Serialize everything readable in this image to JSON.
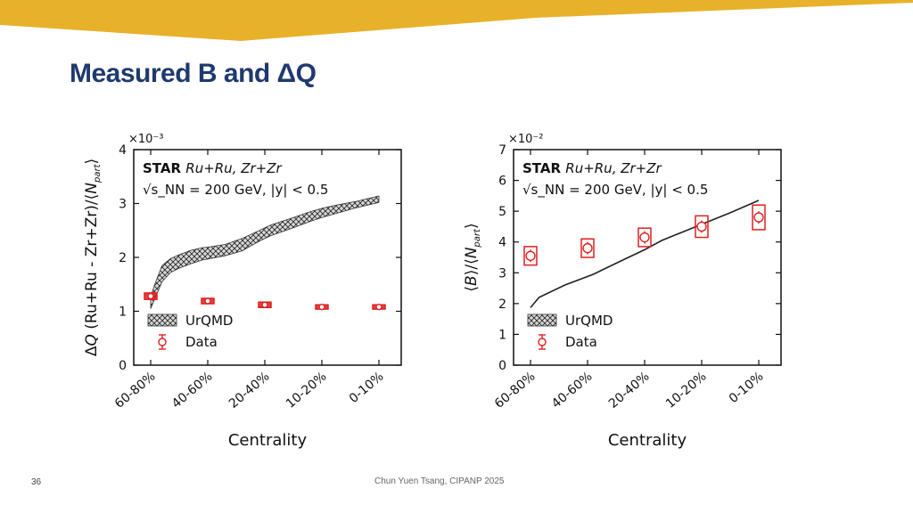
{
  "slide": {
    "title": "Measured B and ΔQ",
    "page_number": "36",
    "credit": "Chun Yuen Tsang, CIPANP 2025",
    "colors": {
      "banner": "#e8b12a",
      "title": "#1f3a6e",
      "data_marker": "#e02020",
      "model_line": "#222222"
    }
  },
  "chart_data": [
    {
      "type": "line",
      "id": "delta-q",
      "multiplier_label": "×10⁻³",
      "ylabel": "ΔQ (Ru+Ru - Zr+Zr)/⟨N_part⟩",
      "xlabel": "Centrality",
      "categories": [
        "60-80%",
        "40-60%",
        "20-40%",
        "10-20%",
        "0-10%"
      ],
      "ylim": [
        0,
        4
      ],
      "yticks": [
        0,
        1,
        2,
        3,
        4
      ],
      "annotation": {
        "experiment": "STAR",
        "system": "Ru+Ru, Zr+Zr",
        "energy": "√s_NN = 200 GeV, |y| < 0.5"
      },
      "legend": [
        "UrQMD",
        "Data"
      ],
      "legend_position": "lower-left",
      "series": [
        {
          "name": "UrQMD",
          "kind": "band",
          "x": [
            0,
            0.1,
            0.2,
            0.35,
            0.5,
            0.7,
            0.9,
            1.0,
            1.3,
            1.6,
            1.9,
            2.1,
            2.5,
            2.8,
            3.0,
            3.3,
            3.6,
            4.0
          ],
          "lower": [
            1.05,
            1.3,
            1.55,
            1.72,
            1.8,
            1.88,
            1.95,
            1.97,
            2.03,
            2.12,
            2.3,
            2.4,
            2.55,
            2.67,
            2.74,
            2.83,
            2.92,
            3.02
          ],
          "upper": [
            1.28,
            1.58,
            1.85,
            1.98,
            2.05,
            2.13,
            2.18,
            2.19,
            2.24,
            2.35,
            2.5,
            2.6,
            2.74,
            2.85,
            2.91,
            2.98,
            3.04,
            3.14
          ]
        },
        {
          "name": "Data",
          "kind": "points",
          "x": [
            0,
            1,
            2,
            3,
            4
          ],
          "values": [
            1.28,
            1.19,
            1.12,
            1.08,
            1.08
          ],
          "errors": [
            0.03,
            0.03,
            0.03,
            0.03,
            0.03
          ],
          "sys_errors": [
            0.06,
            0.05,
            0.05,
            0.04,
            0.04
          ]
        }
      ]
    },
    {
      "type": "line",
      "id": "baryon",
      "multiplier_label": "×10⁻²",
      "ylabel": "⟨B⟩/⟨N_part⟩",
      "xlabel": "Centrality",
      "categories": [
        "60-80%",
        "40-60%",
        "20-40%",
        "10-20%",
        "0-10%"
      ],
      "ylim": [
        0,
        7
      ],
      "yticks": [
        0,
        1,
        2,
        3,
        4,
        5,
        6,
        7
      ],
      "annotation": {
        "experiment": "STAR",
        "system": "Ru+Ru, Zr+Zr",
        "energy": "√s_NN = 200 GeV, |y| < 0.5"
      },
      "legend": [
        "UrQMD",
        "Data"
      ],
      "legend_position": "lower-left",
      "series": [
        {
          "name": "UrQMD",
          "kind": "line",
          "x": [
            0,
            0.15,
            0.6,
            1.1,
            1.6,
            2.0,
            2.3,
            2.7,
            3.1,
            3.5,
            4.0
          ],
          "values": [
            1.87,
            2.2,
            2.6,
            2.95,
            3.4,
            3.75,
            4.05,
            4.35,
            4.65,
            4.95,
            5.35
          ]
        },
        {
          "name": "Data",
          "kind": "points",
          "x": [
            0,
            1,
            2,
            3,
            4
          ],
          "values": [
            3.55,
            3.8,
            4.15,
            4.5,
            4.8
          ],
          "errors": [
            0.2,
            0.2,
            0.2,
            0.2,
            0.2
          ],
          "sys_errors": [
            0.3,
            0.3,
            0.3,
            0.35,
            0.4
          ]
        }
      ]
    }
  ]
}
